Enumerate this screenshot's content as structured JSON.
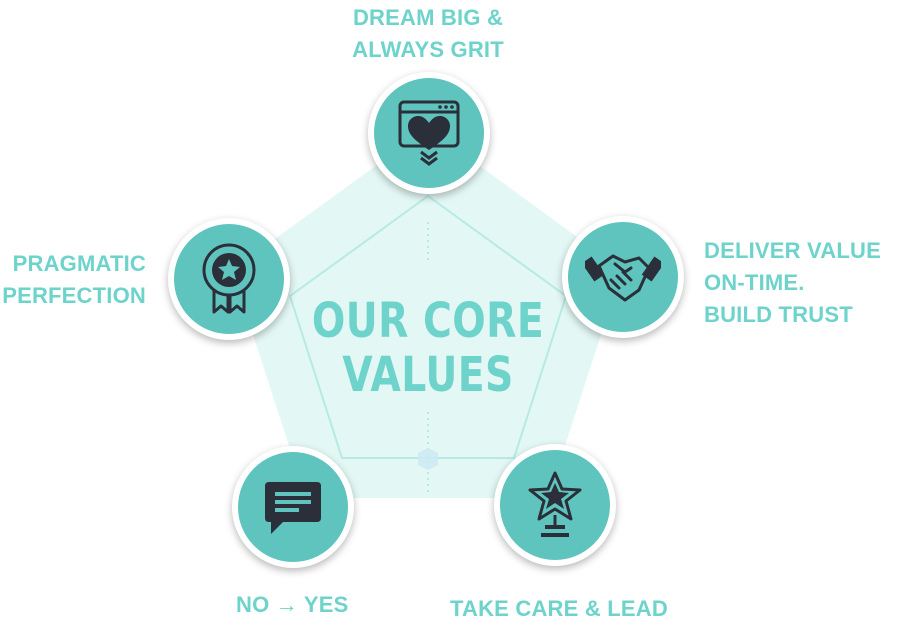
{
  "center": {
    "line1": "OUR CORE",
    "line2": "VALUES"
  },
  "values": [
    {
      "lines": [
        "DREAM BIG &",
        "ALWAYS GRIT"
      ],
      "icon": "browser-heart-icon"
    },
    {
      "lines": [
        "DELIVER VALUE",
        "ON-TIME.",
        "BUILD TRUST"
      ],
      "icon": "handshake-icon"
    },
    {
      "lines": [
        "TAKE CARE & LEAD"
      ],
      "icon": "star-trophy-icon"
    },
    {
      "lines": [
        "NO → YES"
      ],
      "icon": "chat-bubble-icon"
    },
    {
      "lines": [
        "PRAGMATIC",
        "PERFECTION"
      ],
      "icon": "award-ribbon-icon"
    }
  ],
  "colors": {
    "accent": "#6dd3cb",
    "node": "#5fc4bd",
    "pentagon": "#e3f7f4",
    "icon": "#2a2f3a"
  }
}
